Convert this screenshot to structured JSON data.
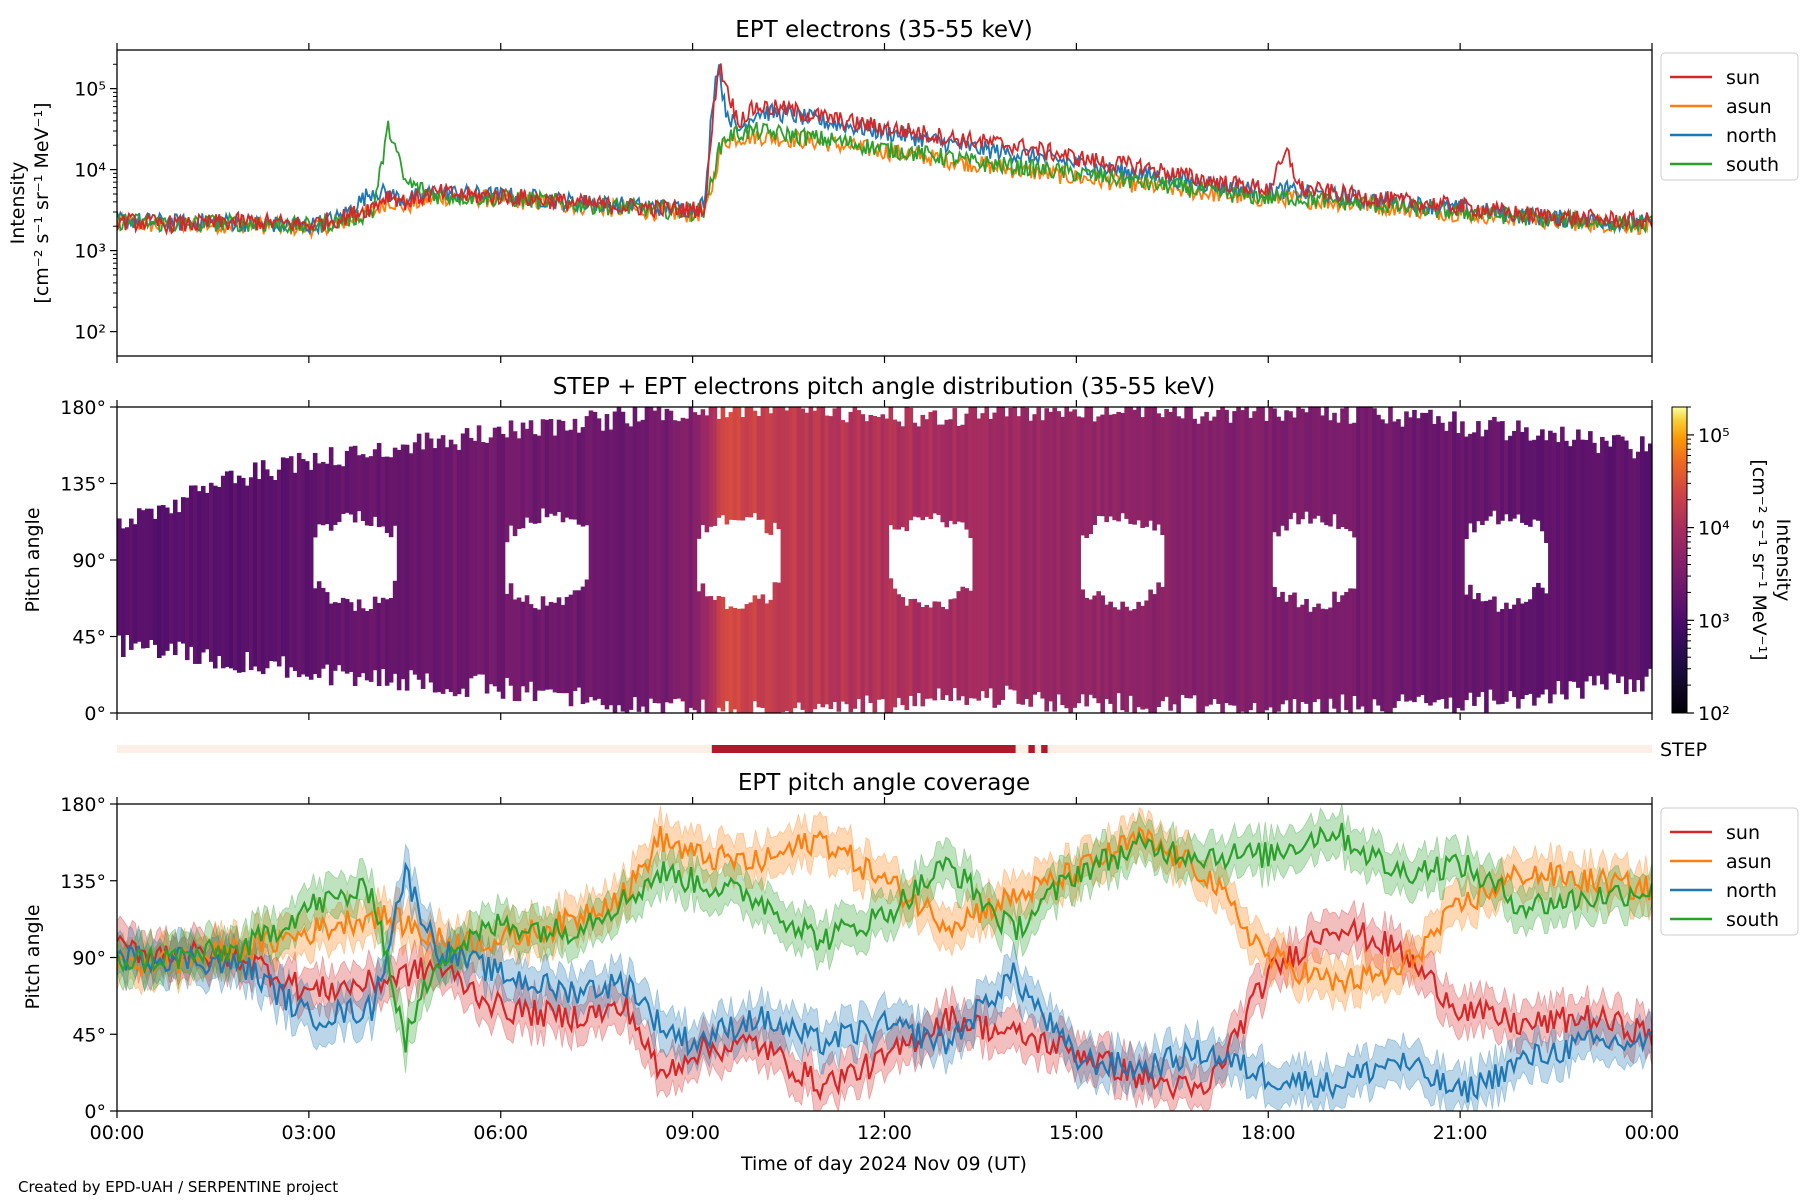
{
  "footer": {
    "credit": "Created by EPD-UAH / SERPENTINE project"
  },
  "chart_data": [
    {
      "type": "line",
      "title": "EPT electrons (35-55 keV)",
      "xlabel": "",
      "ylabel_line1": "Intensity",
      "ylabel_line2": "[cm⁻² s⁻¹ sr⁻¹ MeV⁻¹]",
      "y_scale": "log",
      "ylim": [
        50,
        300000
      ],
      "y_ticks": [
        100,
        1000,
        10000,
        100000
      ],
      "y_tick_labels": [
        "10²",
        "10³",
        "10⁴",
        "10⁵"
      ],
      "x_hours": [
        0,
        0.5,
        1,
        1.5,
        2,
        2.5,
        3,
        3.5,
        4,
        4.25,
        4.5,
        5,
        5.5,
        6,
        6.5,
        7,
        7.5,
        8,
        8.5,
        9,
        9.2,
        9.3,
        9.4,
        9.5,
        9.7,
        10,
        10.5,
        11,
        11.5,
        12,
        12.5,
        13,
        13.5,
        14,
        14.5,
        15,
        15.5,
        16,
        16.5,
        17,
        17.5,
        18,
        18.3,
        18.5,
        19,
        19.5,
        20,
        20.5,
        21,
        21.5,
        22,
        22.5,
        23,
        23.5,
        24
      ],
      "series": [
        {
          "name": "sun",
          "color": "#d62728",
          "values": [
            2300,
            2200,
            2100,
            2200,
            2300,
            2200,
            2100,
            2500,
            3500,
            5000,
            4000,
            5200,
            4800,
            4700,
            4400,
            4000,
            3700,
            3500,
            3300,
            3200,
            3500,
            30000,
            200000,
            130000,
            40000,
            60000,
            55000,
            45000,
            38000,
            33000,
            29000,
            25000,
            22000,
            20000,
            17000,
            14000,
            12000,
            11000,
            9000,
            7500,
            6500,
            5800,
            16000,
            5800,
            5200,
            4600,
            4100,
            3800,
            3500,
            3100,
            2800,
            2600,
            2500,
            2400,
            2300
          ]
        },
        {
          "name": "asun",
          "color": "#ff7f0e",
          "values": [
            2200,
            2100,
            2000,
            2100,
            2100,
            2000,
            1900,
            2200,
            3000,
            4200,
            3500,
            4600,
            4500,
            4300,
            4000,
            3700,
            3400,
            3200,
            3000,
            2800,
            3000,
            6000,
            14000,
            22000,
            25000,
            26000,
            24000,
            22000,
            19000,
            17000,
            15000,
            13000,
            11500,
            10000,
            9000,
            8000,
            7200,
            6500,
            5800,
            5200,
            4700,
            4300,
            4500,
            4300,
            4000,
            3700,
            3400,
            3100,
            2900,
            2700,
            2500,
            2300,
            2200,
            2100,
            2000
          ]
        },
        {
          "name": "north",
          "color": "#1f77b4",
          "values": [
            2400,
            2300,
            2200,
            2300,
            2200,
            2100,
            2000,
            2600,
            5500,
            5000,
            4200,
            5300,
            5000,
            4800,
            4500,
            4100,
            3800,
            3600,
            3400,
            3300,
            4000,
            60000,
            220000,
            60000,
            30000,
            52000,
            48000,
            40000,
            34000,
            29000,
            25000,
            21000,
            18000,
            16000,
            14000,
            12000,
            10000,
            9000,
            7800,
            6800,
            6000,
            5400,
            5600,
            5200,
            4800,
            4300,
            3900,
            3600,
            3300,
            3000,
            2700,
            2500,
            2400,
            2300,
            2200
          ]
        },
        {
          "name": "south",
          "color": "#2ca02c",
          "values": [
            2300,
            2200,
            2100,
            2200,
            2200,
            2100,
            2000,
            2300,
            3000,
            35000,
            7000,
            4800,
            4600,
            4500,
            4200,
            3900,
            3600,
            3400,
            3200,
            3000,
            3200,
            8000,
            16000,
            25000,
            28000,
            30000,
            27000,
            24000,
            21000,
            18000,
            16000,
            14000,
            12000,
            11000,
            10000,
            9000,
            8000,
            7000,
            6200,
            5500,
            4900,
            4500,
            4600,
            4400,
            4100,
            3800,
            3500,
            3200,
            3000,
            2800,
            2600,
            2400,
            2300,
            2200,
            2100
          ]
        }
      ],
      "legend": "right, outside",
      "grid": false
    },
    {
      "type": "heatmap",
      "title": "STEP + EPT electrons pitch angle distribution (35-55 keV)",
      "ylabel": "Pitch angle",
      "ylim": [
        0,
        180
      ],
      "y_tick_labels": [
        "0°",
        "45°",
        "90°",
        "135°",
        "180°"
      ],
      "colorbar": {
        "label_line1": "Intensity",
        "label_line2": "[cm⁻² s⁻¹ sr⁻¹ MeV⁻¹]",
        "scale": "log",
        "range": [
          100,
          200000
        ],
        "tick_labels": [
          "10²",
          "10³",
          "10⁴",
          "10⁵"
        ],
        "colormap": "inferno-like"
      },
      "x_hours": [
        0,
        2,
        4,
        6,
        8,
        9,
        9.5,
        10,
        11,
        12,
        13,
        14,
        15,
        16,
        17,
        18,
        19,
        20,
        21,
        22,
        23,
        24
      ],
      "coverage_low_deg": [
        40,
        30,
        20,
        15,
        5,
        2,
        0,
        0,
        0,
        5,
        10,
        10,
        5,
        5,
        5,
        0,
        5,
        5,
        5,
        10,
        15,
        20
      ],
      "coverage_high_deg": [
        110,
        140,
        155,
        165,
        175,
        178,
        180,
        180,
        180,
        175,
        175,
        178,
        178,
        178,
        175,
        178,
        178,
        175,
        170,
        165,
        160,
        155
      ],
      "intensity": [
        1400,
        1400,
        2000,
        2500,
        2200,
        3500,
        30000,
        20000,
        15000,
        12000,
        10000,
        8000,
        6000,
        5000,
        4000,
        3500,
        3000,
        2500,
        2000,
        1800,
        1600,
        1500
      ]
    },
    {
      "type": "bar",
      "label": "STEP",
      "active_intervals_hours": [
        [
          9.3,
          14.05
        ],
        [
          14.25,
          14.35
        ],
        [
          14.45,
          14.55
        ]
      ],
      "active_color": "#b2182b",
      "inactive_color": "#fdeee6"
    },
    {
      "type": "line",
      "title": "EPT pitch angle coverage",
      "xlabel": "Time of day 2024 Nov 09 (UT)",
      "ylabel": "Pitch angle",
      "ylim": [
        0,
        180
      ],
      "y_tick_labels": [
        "0°",
        "45°",
        "90°",
        "135°",
        "180°"
      ],
      "x_tick_labels": [
        "00:00",
        "03:00",
        "06:00",
        "09:00",
        "12:00",
        "15:00",
        "18:00",
        "21:00",
        "00:00"
      ],
      "x_hours": [
        0,
        1,
        2,
        3,
        4,
        4.5,
        5,
        6,
        7,
        8,
        8.5,
        9,
        10,
        11,
        12,
        13,
        14,
        15,
        16,
        17,
        18,
        19,
        20,
        21,
        22,
        23,
        24
      ],
      "series": [
        {
          "name": "sun",
          "color": "#d62728",
          "values": [
            95,
            92,
            90,
            70,
            75,
            80,
            85,
            60,
            55,
            60,
            20,
            35,
            40,
            15,
            30,
            55,
            45,
            35,
            20,
            10,
            80,
            110,
            95,
            60,
            50,
            55,
            45
          ]
        },
        {
          "name": "asun",
          "color": "#ff7f0e",
          "values": [
            85,
            88,
            95,
            105,
            115,
            110,
            100,
            100,
            110,
            130,
            160,
            150,
            145,
            160,
            135,
            110,
            125,
            140,
            160,
            140,
            90,
            75,
            80,
            120,
            140,
            135,
            130
          ]
        },
        {
          "name": "north",
          "color": "#1f77b4",
          "values": [
            90,
            90,
            85,
            55,
            60,
            140,
            95,
            80,
            70,
            75,
            50,
            40,
            55,
            40,
            50,
            40,
            80,
            30,
            25,
            35,
            20,
            15,
            30,
            10,
            30,
            40,
            40
          ]
        },
        {
          "name": "south",
          "color": "#2ca02c",
          "values": [
            88,
            90,
            95,
            120,
            130,
            40,
            90,
            110,
            105,
            125,
            140,
            135,
            125,
            100,
            115,
            145,
            105,
            140,
            155,
            150,
            150,
            165,
            140,
            145,
            120,
            125,
            130
          ]
        }
      ],
      "legend": "right, outside",
      "grid": false
    }
  ]
}
